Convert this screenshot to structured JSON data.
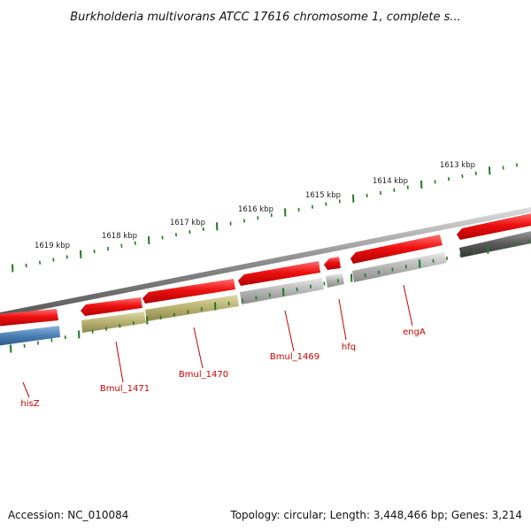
{
  "title": "Burkholderia multivorans ATCC 17616 chromosome 1, complete s...",
  "footer": {
    "accession": "Accession: NC_010084",
    "summary": "Topology: circular; Length: 3,448,466 bp; Genes: 3,214"
  },
  "scale_labels": [
    "1619 kbp",
    "1618 kbp",
    "1617 kbp",
    "1616 kbp",
    "1615 kbp",
    "1614 kbp",
    "1613 kbp"
  ],
  "gene_labels": [
    "hisZ",
    "Bmul_1471",
    "Bmul_1470",
    "Bmul_1469",
    "hfq",
    "engA"
  ],
  "colors": {
    "backbone": "#8c8c8c",
    "forward_strand": "#ee1111",
    "gene_grey": "#b4b4b4",
    "gene_dark": "#5a5a5a",
    "gene_olive": "#b7b070",
    "gene_blue": "#4a7fb5",
    "tick": "#1f7a1f",
    "label": "#cc0000"
  }
}
